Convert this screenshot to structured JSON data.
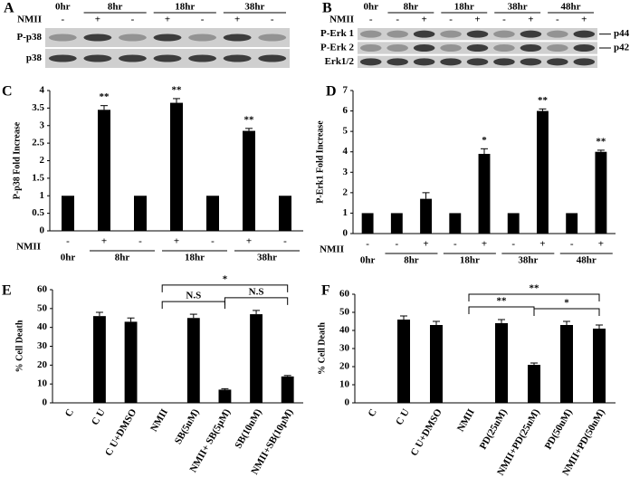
{
  "blots": [
    {
      "panel": "A",
      "times": [
        "0hr",
        "8hr",
        "18hr",
        "38hr"
      ],
      "row_label": "NMII",
      "signs": [
        "-",
        "+",
        "-",
        "+",
        "-",
        "+",
        "-"
      ],
      "bands": [
        "P-p38",
        "p38"
      ]
    },
    {
      "panel": "B",
      "times": [
        "0hr",
        "8hr",
        "18hr",
        "38hr",
        "48hr"
      ],
      "row_label": "NMII",
      "signs": [
        "-",
        "-",
        "+",
        "-",
        "+",
        "-",
        "+",
        "-",
        "+"
      ],
      "bands": [
        "P-Erk 1",
        "P-Erk 2",
        "Erk1/2"
      ],
      "side_labels": [
        "p44",
        "p42"
      ]
    }
  ],
  "chart_data": [
    {
      "type": "bar",
      "panel": "C",
      "ylabel": "P-p38 Fold Increase",
      "x_row_label": "NMII",
      "categories": [
        "-",
        "+",
        "-",
        "+",
        "-",
        "+",
        "-"
      ],
      "x_groups": [
        "0hr",
        "8hr",
        "18hr",
        "38hr"
      ],
      "values": [
        1,
        3.45,
        1,
        3.65,
        1,
        2.85,
        1
      ],
      "errors": [
        0,
        0.12,
        0,
        0.12,
        0,
        0.07,
        0
      ],
      "color": "#000000",
      "annotations": [
        {
          "index": 1,
          "label": "**"
        },
        {
          "index": 3,
          "label": "**"
        },
        {
          "index": 5,
          "label": "**"
        }
      ],
      "ylim": [
        0,
        4
      ],
      "yticks": [
        0,
        0.5,
        1,
        1.5,
        2,
        2.5,
        3,
        3.5,
        4
      ]
    },
    {
      "type": "bar",
      "panel": "D",
      "ylabel": "P-Erk1 Fold Increase",
      "x_row_label": "NMII",
      "categories": [
        "-",
        "-",
        "+",
        "-",
        "+",
        "-",
        "+",
        "-",
        "+"
      ],
      "x_groups": [
        "0hr",
        "8hr",
        "18hr",
        "38hr",
        "48hr"
      ],
      "values": [
        1,
        1,
        1.7,
        1,
        3.9,
        1,
        6,
        1,
        4
      ],
      "errors": [
        0,
        0,
        0.3,
        0,
        0.25,
        0,
        0.1,
        0,
        0.08
      ],
      "color": "#000000",
      "annotations": [
        {
          "index": 4,
          "label": "*"
        },
        {
          "index": 6,
          "label": "**"
        },
        {
          "index": 8,
          "label": "**"
        }
      ],
      "ylim": [
        0,
        7
      ],
      "yticks": [
        0,
        1,
        2,
        3,
        4,
        5,
        6,
        7
      ]
    },
    {
      "type": "bar",
      "panel": "E",
      "ylabel": "% Cell Death",
      "categories": [
        "C",
        "C U",
        "C U+DMSO",
        "NMII",
        "SB(5uM)",
        "NMII+ SB(5μM)",
        "SB(10uM)",
        "NMII+SB(10μM)"
      ],
      "values": [
        0,
        46,
        43,
        0,
        45,
        7,
        47,
        14
      ],
      "errors": [
        0,
        2,
        2,
        0,
        2,
        0.5,
        2,
        0.5
      ],
      "color": "#000000",
      "brackets": [
        {
          "from": 3,
          "to": 5,
          "label": "N.S"
        },
        {
          "from": 5,
          "to": 7,
          "label": "N.S"
        },
        {
          "from": 3,
          "to": 7,
          "label": "*"
        }
      ],
      "ylim": [
        0,
        60
      ],
      "yticks": [
        0,
        10,
        20,
        30,
        40,
        50,
        60
      ]
    },
    {
      "type": "bar",
      "panel": "F",
      "ylabel": "% Cell Death",
      "categories": [
        "C",
        "C U",
        "C U+DMSO",
        "NMII",
        "PD(25uM)",
        "NMII+PD(25uM)",
        "PD(50uM)",
        "NMII+PD(50uM)"
      ],
      "values": [
        0,
        46,
        43,
        0,
        44,
        21,
        43,
        41
      ],
      "errors": [
        0,
        2,
        2,
        0,
        2,
        1,
        2,
        2
      ],
      "color": "#000000",
      "brackets": [
        {
          "from": 3,
          "to": 5,
          "label": "**"
        },
        {
          "from": 5,
          "to": 7,
          "label": "*"
        },
        {
          "from": 3,
          "to": 7,
          "label": "**"
        }
      ],
      "ylim": [
        0,
        60
      ],
      "yticks": [
        0,
        10,
        20,
        30,
        40,
        50,
        60
      ]
    }
  ]
}
